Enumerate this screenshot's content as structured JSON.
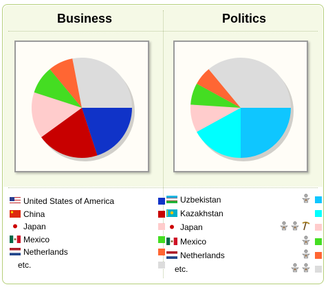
{
  "chart_data": [
    {
      "type": "pie",
      "title": "Business",
      "categories": [
        "United States of America",
        "China",
        "Japan",
        "Mexico",
        "Netherlands",
        "etc."
      ],
      "values": [
        20,
        20,
        15,
        9,
        8,
        28
      ],
      "colors": [
        "#1033c8",
        "#c80000",
        "#ffcccc",
        "#44dd22",
        "#ff6633",
        "#dcdcdc"
      ]
    },
    {
      "type": "pie",
      "title": "Politics",
      "categories": [
        "Uzbekistan",
        "Kazakhstan",
        "Japan",
        "Mexico",
        "Netherlands",
        "etc."
      ],
      "values": [
        25,
        17,
        9,
        7,
        6,
        36
      ],
      "colors": [
        "#0fc6ff",
        "#00ffff",
        "#ffcccc",
        "#44dd22",
        "#ff6633",
        "#dcdcdc"
      ]
    }
  ],
  "business": {
    "title": "Business",
    "legend": [
      {
        "label": "United States of America",
        "flag": "us-flag-icon",
        "color": "#1033c8"
      },
      {
        "label": "China",
        "flag": "china-flag-icon",
        "color": "#c80000"
      },
      {
        "label": "Japan",
        "flag": "japan-flag-icon",
        "color": "#ffcccc"
      },
      {
        "label": "Mexico",
        "flag": "mexico-flag-icon",
        "color": "#44dd22"
      },
      {
        "label": "Netherlands",
        "flag": "netherlands-flag-icon",
        "color": "#ff6633"
      },
      {
        "label": "etc.",
        "flag": "",
        "color": "#dcdcdc"
      }
    ]
  },
  "politics": {
    "title": "Politics",
    "legend": [
      {
        "label": "Uzbekistan",
        "flag": "uzbekistan-flag-icon",
        "color": "#0fc6ff",
        "icons": [
          "figure-icon"
        ]
      },
      {
        "label": "Kazakhstan",
        "flag": "kazakhstan-flag-icon",
        "color": "#00ffff",
        "icons": []
      },
      {
        "label": "Japan",
        "flag": "japan-flag-icon",
        "color": "#ffcccc",
        "icons": [
          "figure-icon",
          "figure-icon",
          "pickaxe-icon"
        ]
      },
      {
        "label": "Mexico",
        "flag": "mexico-flag-icon",
        "color": "#44dd22",
        "icons": [
          "figure-icon"
        ]
      },
      {
        "label": "Netherlands",
        "flag": "netherlands-flag-icon",
        "color": "#ff6633",
        "icons": [
          "figure-icon"
        ]
      },
      {
        "label": "etc.",
        "flag": "",
        "color": "#dcdcdc",
        "icons": [
          "figure-icon",
          "figure-icon"
        ]
      }
    ]
  }
}
